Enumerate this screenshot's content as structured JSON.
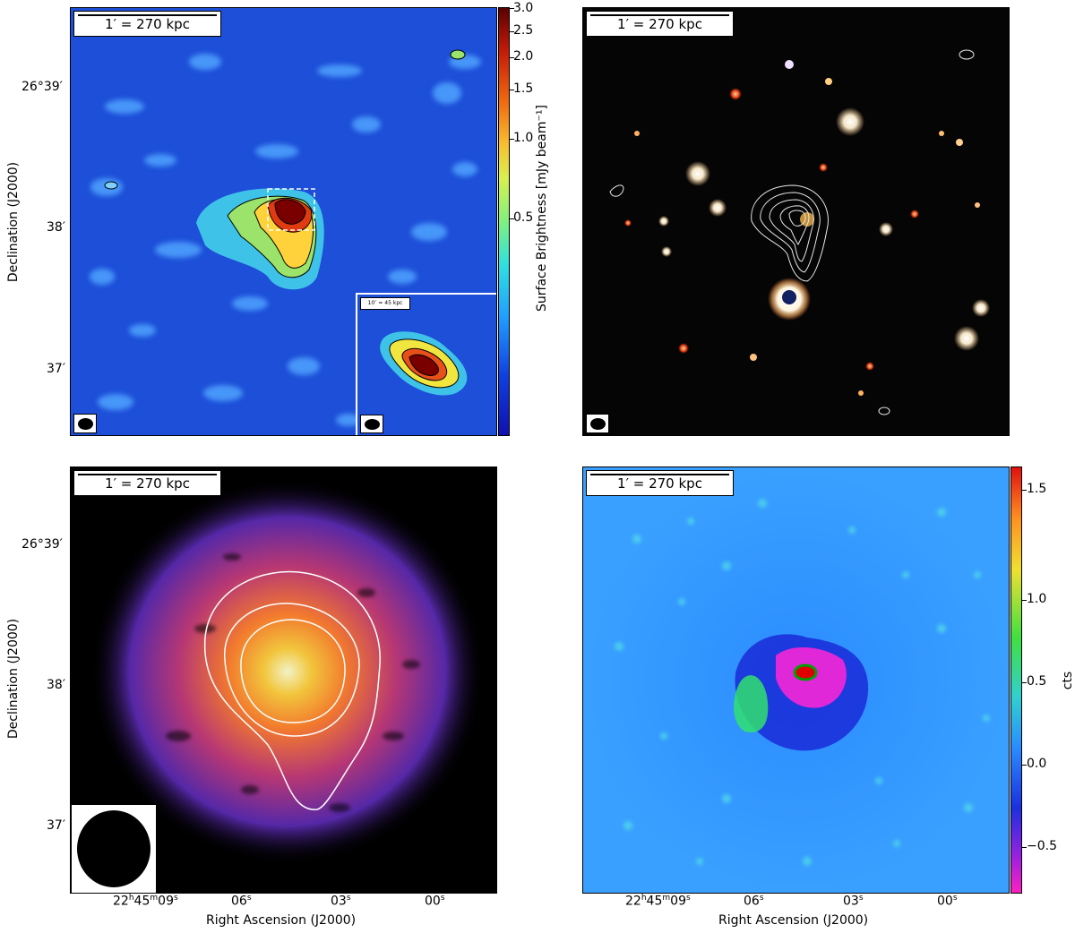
{
  "scale_label": "1′ = 270 kpc",
  "inset_scale_label": "10″ = 45 kpc",
  "dec_axis": {
    "label": "Declination (J2000)",
    "ticks": [
      "26°39′",
      "38′",
      "37′"
    ]
  },
  "ra_axis": {
    "label": "Right Ascension (J2000)",
    "ticks": [
      "22h45m09s",
      "06s",
      "03s",
      "00s"
    ],
    "tick_first": {
      "hours": "22",
      "h": "h",
      "minutes": "45",
      "m": "m",
      "seconds": "09",
      "s": "s"
    },
    "tick_06": {
      "num": "06",
      "s": "s"
    },
    "tick_03": {
      "num": "03",
      "s": "s"
    },
    "tick_00": {
      "num": "00",
      "s": "s"
    }
  },
  "panel_radio": {
    "colorbar_label": "Surface Brightness [mJy beam⁻¹]",
    "colorbar_ticks": [
      "3.0",
      "2.5",
      "2.0",
      "1.5",
      "1.0",
      "0.5"
    ]
  },
  "panel_residual": {
    "colorbar_label": "cts",
    "colorbar_ticks": [
      "1.5",
      "1.0",
      "0.5",
      "0.0",
      "−0.5"
    ]
  },
  "colors": {
    "radio_background": "#1a4fd6",
    "xray_background": "#000000",
    "residual_background": "#2a8cff",
    "contour": "#ffffff"
  }
}
